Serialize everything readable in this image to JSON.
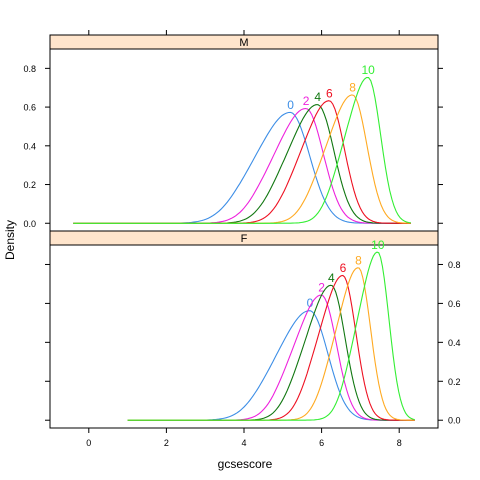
{
  "chart_data": {
    "type": "line",
    "xlabel": "gcsescore",
    "ylabel": "Density",
    "xlim": [
      -1,
      9
    ],
    "ylim": [
      -0.04,
      0.9
    ],
    "x_ticks": [
      0,
      2,
      4,
      6,
      8
    ],
    "y_ticks": [
      0.0,
      0.2,
      0.4,
      0.6,
      0.8
    ],
    "y_tick_labels": [
      "0.0",
      "0.2",
      "0.4",
      "0.6",
      "0.8"
    ],
    "grid": false,
    "legend": "direct labels at curve peaks",
    "series_colors": {
      "0": "#3d8ee6",
      "2": "#ee22dd",
      "4": "#117711",
      "6": "#ee1122",
      "8": "#ffaa22",
      "10": "#33ee33"
    },
    "panels": [
      {
        "name": "M",
        "series": [
          {
            "name": "0",
            "peak_x": 5.2,
            "peak_y": 0.57,
            "sd": 0.8,
            "x": [
              -0.4,
              8.3
            ]
          },
          {
            "name": "2",
            "peak_x": 5.6,
            "peak_y": 0.59,
            "sd": 0.72,
            "x": [
              -0.4,
              8.3
            ]
          },
          {
            "name": "4",
            "peak_x": 5.9,
            "peak_y": 0.61,
            "sd": 0.68,
            "x": [
              -0.4,
              8.3
            ]
          },
          {
            "name": "6",
            "peak_x": 6.2,
            "peak_y": 0.63,
            "sd": 0.63,
            "x": [
              -0.4,
              8.3
            ]
          },
          {
            "name": "8",
            "peak_x": 6.8,
            "peak_y": 0.66,
            "sd": 0.6,
            "x": [
              -0.4,
              8.3
            ]
          },
          {
            "name": "10",
            "peak_x": 7.2,
            "peak_y": 0.75,
            "sd": 0.52,
            "x": [
              -0.4,
              8.3
            ]
          }
        ]
      },
      {
        "name": "F",
        "series": [
          {
            "name": "0",
            "peak_x": 5.7,
            "peak_y": 0.56,
            "sd": 0.75,
            "x": [
              1.0,
              8.4
            ]
          },
          {
            "name": "2",
            "peak_x": 6.0,
            "peak_y": 0.64,
            "sd": 0.62,
            "x": [
              1.0,
              8.4
            ]
          },
          {
            "name": "4",
            "peak_x": 6.25,
            "peak_y": 0.69,
            "sd": 0.58,
            "x": [
              1.0,
              8.4
            ]
          },
          {
            "name": "6",
            "peak_x": 6.55,
            "peak_y": 0.74,
            "sd": 0.54,
            "x": [
              1.0,
              8.4
            ]
          },
          {
            "name": "8",
            "peak_x": 6.95,
            "peak_y": 0.78,
            "sd": 0.5,
            "x": [
              1.0,
              8.4
            ]
          },
          {
            "name": "10",
            "peak_x": 7.45,
            "peak_y": 0.86,
            "sd": 0.46,
            "x": [
              1.0,
              8.4
            ]
          }
        ]
      }
    ]
  }
}
